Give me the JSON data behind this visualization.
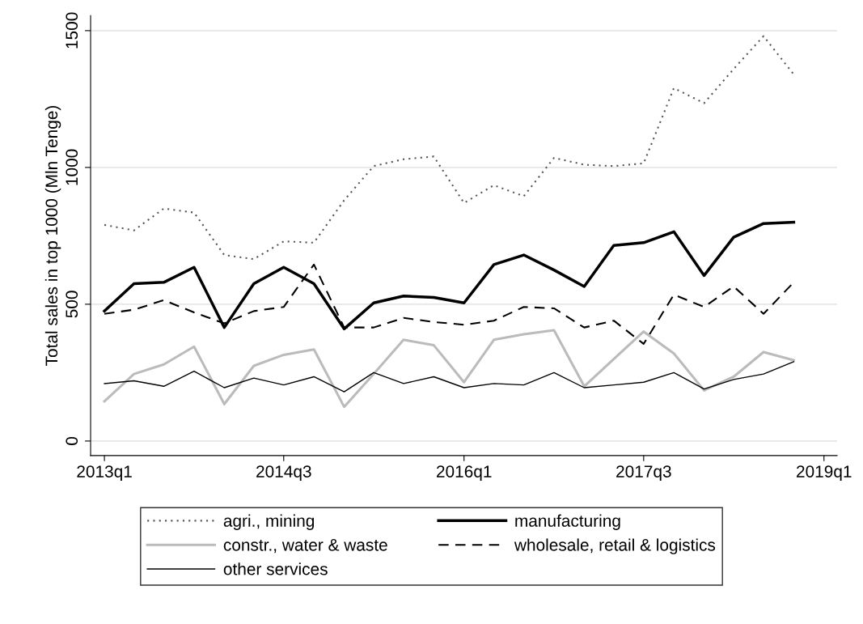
{
  "chart_data": {
    "type": "line",
    "ylabel": "Total sales in top 1000 (Mln Tenge)",
    "x": [
      "2013-01",
      "2013-04",
      "2013-07",
      "2013-10",
      "2014-01",
      "2014-04",
      "2014-07",
      "2014-10",
      "2015-01",
      "2015-04",
      "2015-07",
      "2015-10",
      "2016-01",
      "2016-04",
      "2016-07",
      "2016-10",
      "2017-01",
      "2017-04",
      "2017-07",
      "2017-10",
      "2018-01",
      "2018-04",
      "2018-07",
      "2018-10"
    ],
    "xlim": [
      "2012-11-20",
      "2019-02-10"
    ],
    "xticks": [
      {
        "value": "2013-01",
        "label": "2013q1"
      },
      {
        "value": "2014-07",
        "label": "2014q3"
      },
      {
        "value": "2016-01",
        "label": "2016q1"
      },
      {
        "value": "2017-07",
        "label": "2017q3"
      },
      {
        "value": "2019-01",
        "label": "2019q1"
      }
    ],
    "ylim": [
      -53,
      1555
    ],
    "yticks": [
      0,
      500,
      1000,
      1500
    ],
    "grid": "y",
    "legend": "bottom",
    "series": [
      {
        "name": "agri., mining",
        "color": "#555555",
        "line_style": "dotted",
        "values": [
          790,
          770,
          850,
          835,
          680,
          665,
          730,
          725,
          880,
          1005,
          1030,
          1040,
          870,
          935,
          895,
          1035,
          1010,
          1005,
          1015,
          1290,
          1235,
          1360,
          1480,
          1340
        ]
      },
      {
        "name": "constr., water & waste",
        "color": "#bbbbbb",
        "line_style": "solid",
        "values": [
          145,
          245,
          280,
          345,
          135,
          275,
          315,
          335,
          125,
          245,
          370,
          350,
          215,
          370,
          390,
          405,
          200,
          300,
          400,
          320,
          185,
          235,
          325,
          295
        ]
      },
      {
        "name": "other services",
        "color": "#000000",
        "line_style": "solid",
        "values": [
          210,
          220,
          200,
          255,
          195,
          230,
          205,
          235,
          180,
          250,
          210,
          235,
          195,
          210,
          205,
          250,
          195,
          205,
          215,
          250,
          190,
          225,
          245,
          290
        ]
      },
      {
        "name": "manufacturing",
        "color": "#000000",
        "line_style": "solid",
        "values": [
          475,
          575,
          580,
          635,
          415,
          575,
          635,
          575,
          410,
          505,
          530,
          525,
          505,
          645,
          680,
          625,
          565,
          715,
          725,
          765,
          605,
          745,
          795,
          800
        ]
      },
      {
        "name": "wholesale, retail & logistics",
        "color": "#000000",
        "line_style": "dashed",
        "values": [
          465,
          480,
          515,
          470,
          430,
          475,
          490,
          645,
          415,
          415,
          450,
          435,
          425,
          440,
          490,
          485,
          415,
          440,
          355,
          535,
          490,
          565,
          465,
          580
        ]
      }
    ]
  }
}
